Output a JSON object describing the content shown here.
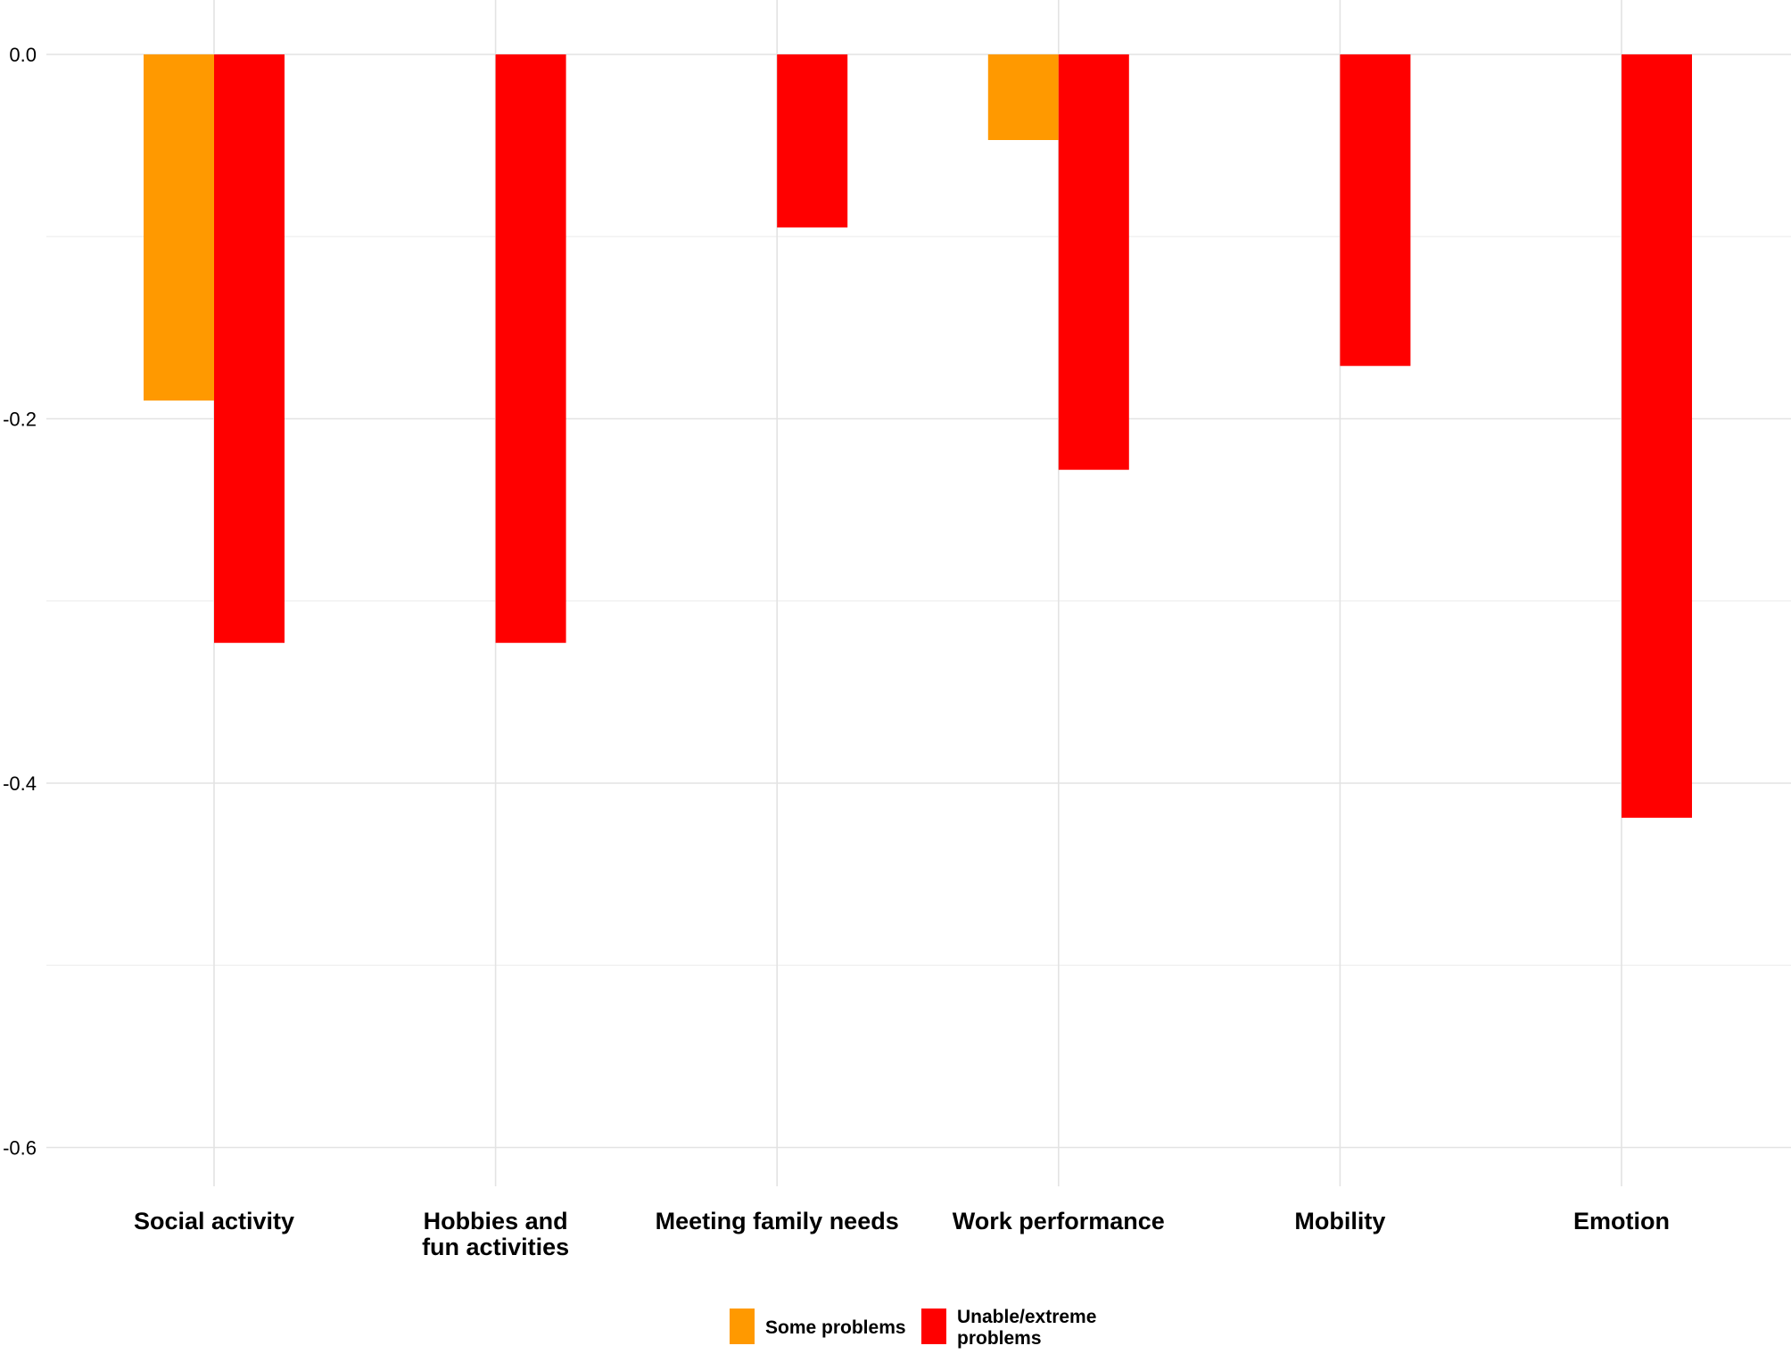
{
  "chart_data": {
    "type": "bar",
    "categories": [
      "Social activity",
      "Hobbies and fun activities",
      "Meeting family needs",
      "Work performance",
      "Mobility",
      "Emotion"
    ],
    "category_label_lines": [
      [
        "Social activity"
      ],
      [
        "Hobbies and",
        "fun activities"
      ],
      [
        "Meeting family needs"
      ],
      [
        "Work performance"
      ],
      [
        "Mobility"
      ],
      [
        "Emotion"
      ]
    ],
    "series": [
      {
        "name": "Some problems",
        "legend_lines": [
          "Some problems"
        ],
        "color": "#ff9900",
        "values": [
          -0.19,
          0,
          0,
          -0.047,
          0,
          0
        ]
      },
      {
        "name": "Unable/extreme problems",
        "legend_lines": [
          "Unable/extreme",
          "problems"
        ],
        "color": "#ff0000",
        "values": [
          -0.323,
          -0.323,
          -0.095,
          -0.228,
          -0.171,
          -0.419
        ]
      }
    ],
    "yticks": [
      {
        "value": 0,
        "label": "0.0"
      },
      {
        "value": -0.2,
        "label": "-0.2"
      },
      {
        "value": -0.4,
        "label": "-0.4"
      },
      {
        "value": -0.6,
        "label": "-0.6"
      }
    ],
    "ylim": [
      -0.6,
      0
    ],
    "title": "",
    "xlabel": "",
    "ylabel": "",
    "grid": true,
    "legend_position": "bottom"
  }
}
